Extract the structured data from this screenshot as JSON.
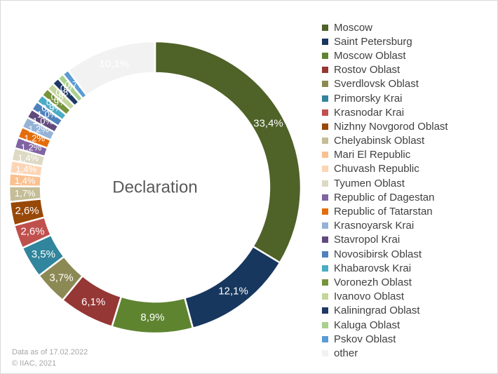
{
  "chart_data": {
    "type": "pie",
    "center_label": "Declaration",
    "slices": [
      {
        "name": "Moscow",
        "value": 33.4,
        "label": "33,4%",
        "color": "#4f6228"
      },
      {
        "name": "Saint Petersburg",
        "value": 12.1,
        "label": "12,1%",
        "color": "#17375e"
      },
      {
        "name": "Moscow Oblast",
        "value": 8.9,
        "label": "8,9%",
        "color": "#5f8430"
      },
      {
        "name": "Rostov Oblast",
        "value": 6.1,
        "label": "6,1%",
        "color": "#953735"
      },
      {
        "name": "Sverdlovsk Oblast",
        "value": 3.7,
        "label": "3,7%",
        "color": "#8c8a54"
      },
      {
        "name": "Primorsky Krai",
        "value": 3.5,
        "label": "3,5%",
        "color": "#31859c"
      },
      {
        "name": "Krasnodar Krai",
        "value": 2.6,
        "label": "2,6%",
        "color": "#c0504d"
      },
      {
        "name": "Nizhny Novgorod Oblast",
        "value": 2.6,
        "label": "2,6%",
        "color": "#984807"
      },
      {
        "name": "Chelyabinsk Oblast",
        "value": 1.7,
        "label": "1,7%",
        "color": "#c4bd97"
      },
      {
        "name": "Mari El Republic",
        "value": 1.4,
        "label": "1,4%",
        "color": "#fac090"
      },
      {
        "name": "Chuvash Republic",
        "value": 1.4,
        "label": "1,4%",
        "color": "#fcd5b5"
      },
      {
        "name": "Tyumen Oblast",
        "value": 1.4,
        "label": "1,4%",
        "color": "#ddd9c3"
      },
      {
        "name": "Republic of Dagestan",
        "value": 1.2,
        "label": "1,2%",
        "color": "#8064a2"
      },
      {
        "name": "Republic of Tatarstan",
        "value": 1.2,
        "label": "1,2%",
        "color": "#e46c0a"
      },
      {
        "name": "Krasnoyarsk Krai",
        "value": 1.2,
        "label": "1,2%",
        "color": "#95b3d7"
      },
      {
        "name": "Stavropol Krai",
        "value": 1.0,
        "label": "1,0%",
        "color": "#604a7b"
      },
      {
        "name": "Novosibirsk Oblast",
        "value": 1.0,
        "label": "1,0%",
        "color": "#4f81bd"
      },
      {
        "name": "Khabarovsk Krai",
        "value": 0.9,
        "label": "0,9%",
        "color": "#4bacc6"
      },
      {
        "name": "Voronezh Oblast",
        "value": 0.9,
        "label": "0,9%",
        "color": "#77933c"
      },
      {
        "name": "Ivanovo Oblast",
        "value": 0.8,
        "label": "0,8%",
        "color": "#c3d69b"
      },
      {
        "name": "Kaliningrad Oblast",
        "value": 0.8,
        "label": "0,8%",
        "color": "#1f3864"
      },
      {
        "name": "Kaluga Oblast",
        "value": 0.7,
        "label": "0,7%",
        "color": "#a9d18e"
      },
      {
        "name": "Pskov Oblast",
        "value": 0.7,
        "label": "0,7%",
        "color": "#5b9bd5"
      },
      {
        "name": "other",
        "value": 10.1,
        "label": "10,1%",
        "color": "#f2f2f2"
      }
    ],
    "legend_position": "right"
  },
  "footer": {
    "line1": "Data as of 17.02.2022",
    "line2": "© IIAC, 2021"
  }
}
